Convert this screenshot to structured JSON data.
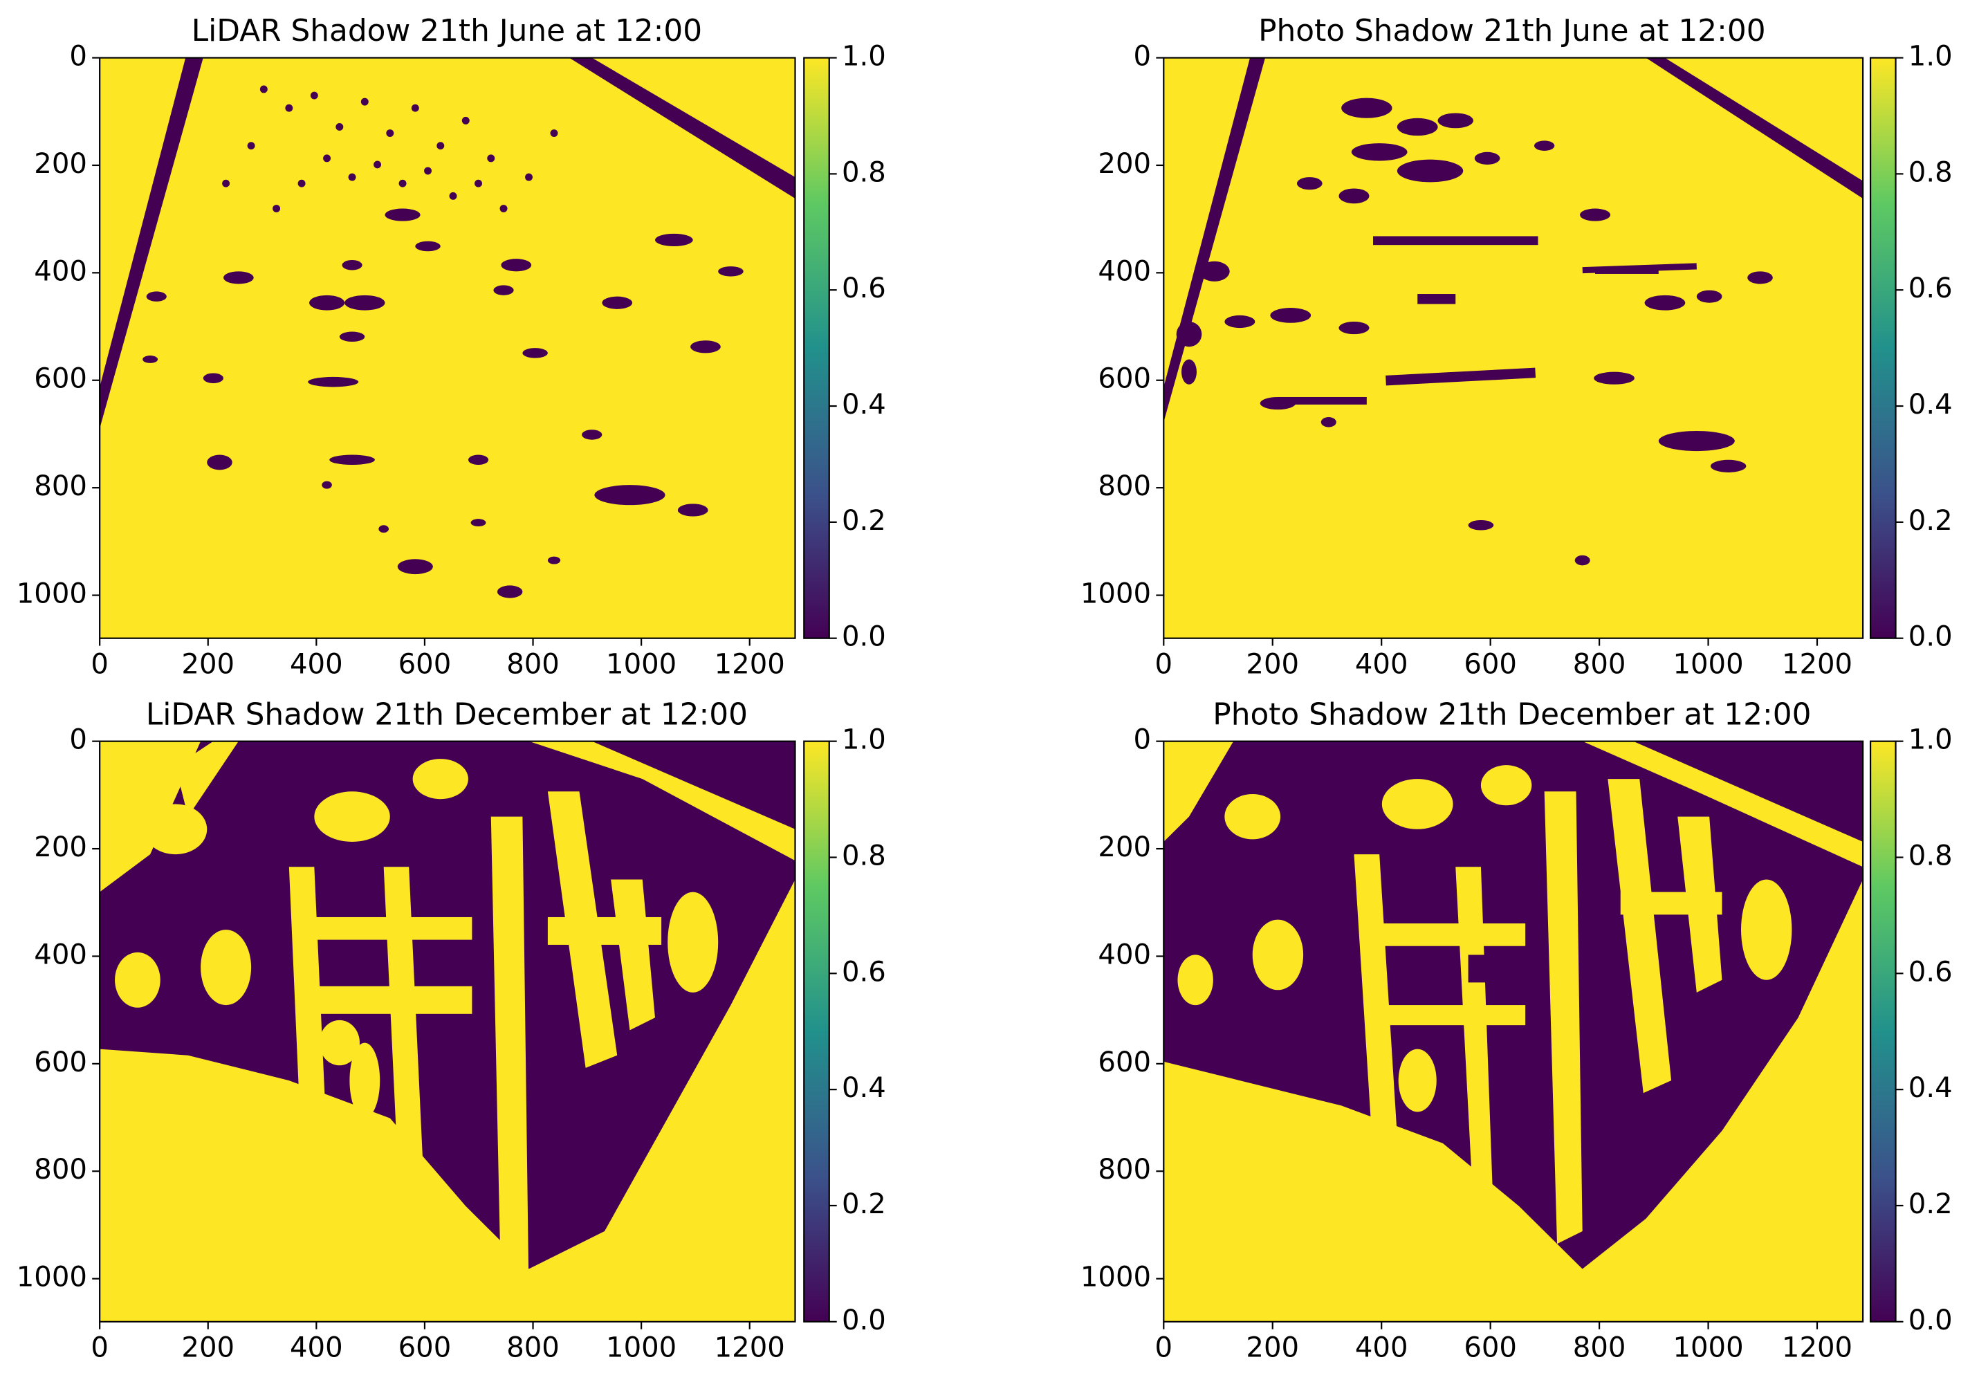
{
  "chart_data": [
    {
      "type": "heatmap",
      "title": "LiDAR Shadow 21th June at 12:00",
      "xlim": [
        0,
        1284
      ],
      "ylim": [
        1080,
        0
      ],
      "xticks": [
        0,
        200,
        400,
        600,
        800,
        1000,
        1200
      ],
      "yticks": [
        0,
        200,
        400,
        600,
        800,
        1000
      ],
      "colors": [
        "#440154",
        "#3b528b",
        "#21918c",
        "#5ec962",
        "#fde725"
      ],
      "clim": [
        0,
        1
      ],
      "cticks": [
        {
          "value": 0,
          "label": "0.0"
        },
        {
          "value": 0.2,
          "label": "0.2"
        },
        {
          "value": 0.4,
          "label": "0.4"
        },
        {
          "value": 0.6,
          "label": "0.6"
        },
        {
          "value": 0.8,
          "label": "0.8"
        },
        {
          "value": 1,
          "label": "1.0"
        }
      ]
    },
    {
      "type": "heatmap",
      "title": "Photo Shadow 21th June at 12:00",
      "xlim": [
        0,
        1284
      ],
      "ylim": [
        1080,
        0
      ],
      "xticks": [
        0,
        200,
        400,
        600,
        800,
        1000,
        1200
      ],
      "yticks": [
        0,
        200,
        400,
        600,
        800,
        1000
      ],
      "colors": [
        "#440154",
        "#3b528b",
        "#21918c",
        "#5ec962",
        "#fde725"
      ],
      "clim": [
        0,
        1
      ],
      "cticks": [
        {
          "value": 0,
          "label": "0.0"
        },
        {
          "value": 0.2,
          "label": "0.2"
        },
        {
          "value": 0.4,
          "label": "0.4"
        },
        {
          "value": 0.6,
          "label": "0.6"
        },
        {
          "value": 0.8,
          "label": "0.8"
        },
        {
          "value": 1,
          "label": "1.0"
        }
      ]
    },
    {
      "type": "heatmap",
      "title": "LiDAR Shadow 21th December at 12:00",
      "xlim": [
        0,
        1284
      ],
      "ylim": [
        1080,
        0
      ],
      "xticks": [
        0,
        200,
        400,
        600,
        800,
        1000,
        1200
      ],
      "yticks": [
        0,
        200,
        400,
        600,
        800,
        1000
      ],
      "colors": [
        "#440154",
        "#3b528b",
        "#21918c",
        "#5ec962",
        "#fde725"
      ],
      "clim": [
        0,
        1
      ],
      "cticks": [
        {
          "value": 0,
          "label": "0.0"
        },
        {
          "value": 0.2,
          "label": "0.2"
        },
        {
          "value": 0.4,
          "label": "0.4"
        },
        {
          "value": 0.6,
          "label": "0.6"
        },
        {
          "value": 0.8,
          "label": "0.8"
        },
        {
          "value": 1,
          "label": "1.0"
        }
      ]
    },
    {
      "type": "heatmap",
      "title": "Photo Shadow 21th December at 12:00",
      "xlim": [
        0,
        1284
      ],
      "ylim": [
        1080,
        0
      ],
      "xticks": [
        0,
        200,
        400,
        600,
        800,
        1000,
        1200
      ],
      "yticks": [
        0,
        200,
        400,
        600,
        800,
        1000
      ],
      "colors": [
        "#440154",
        "#3b528b",
        "#21918c",
        "#5ec962",
        "#fde725"
      ],
      "clim": [
        0,
        1
      ],
      "cticks": [
        {
          "value": 0,
          "label": "0.0"
        },
        {
          "value": 0.2,
          "label": "0.2"
        },
        {
          "value": 0.4,
          "label": "0.4"
        },
        {
          "value": 0.6,
          "label": "0.6"
        },
        {
          "value": 0.8,
          "label": "0.8"
        },
        {
          "value": 1,
          "label": "1.0"
        }
      ]
    }
  ]
}
